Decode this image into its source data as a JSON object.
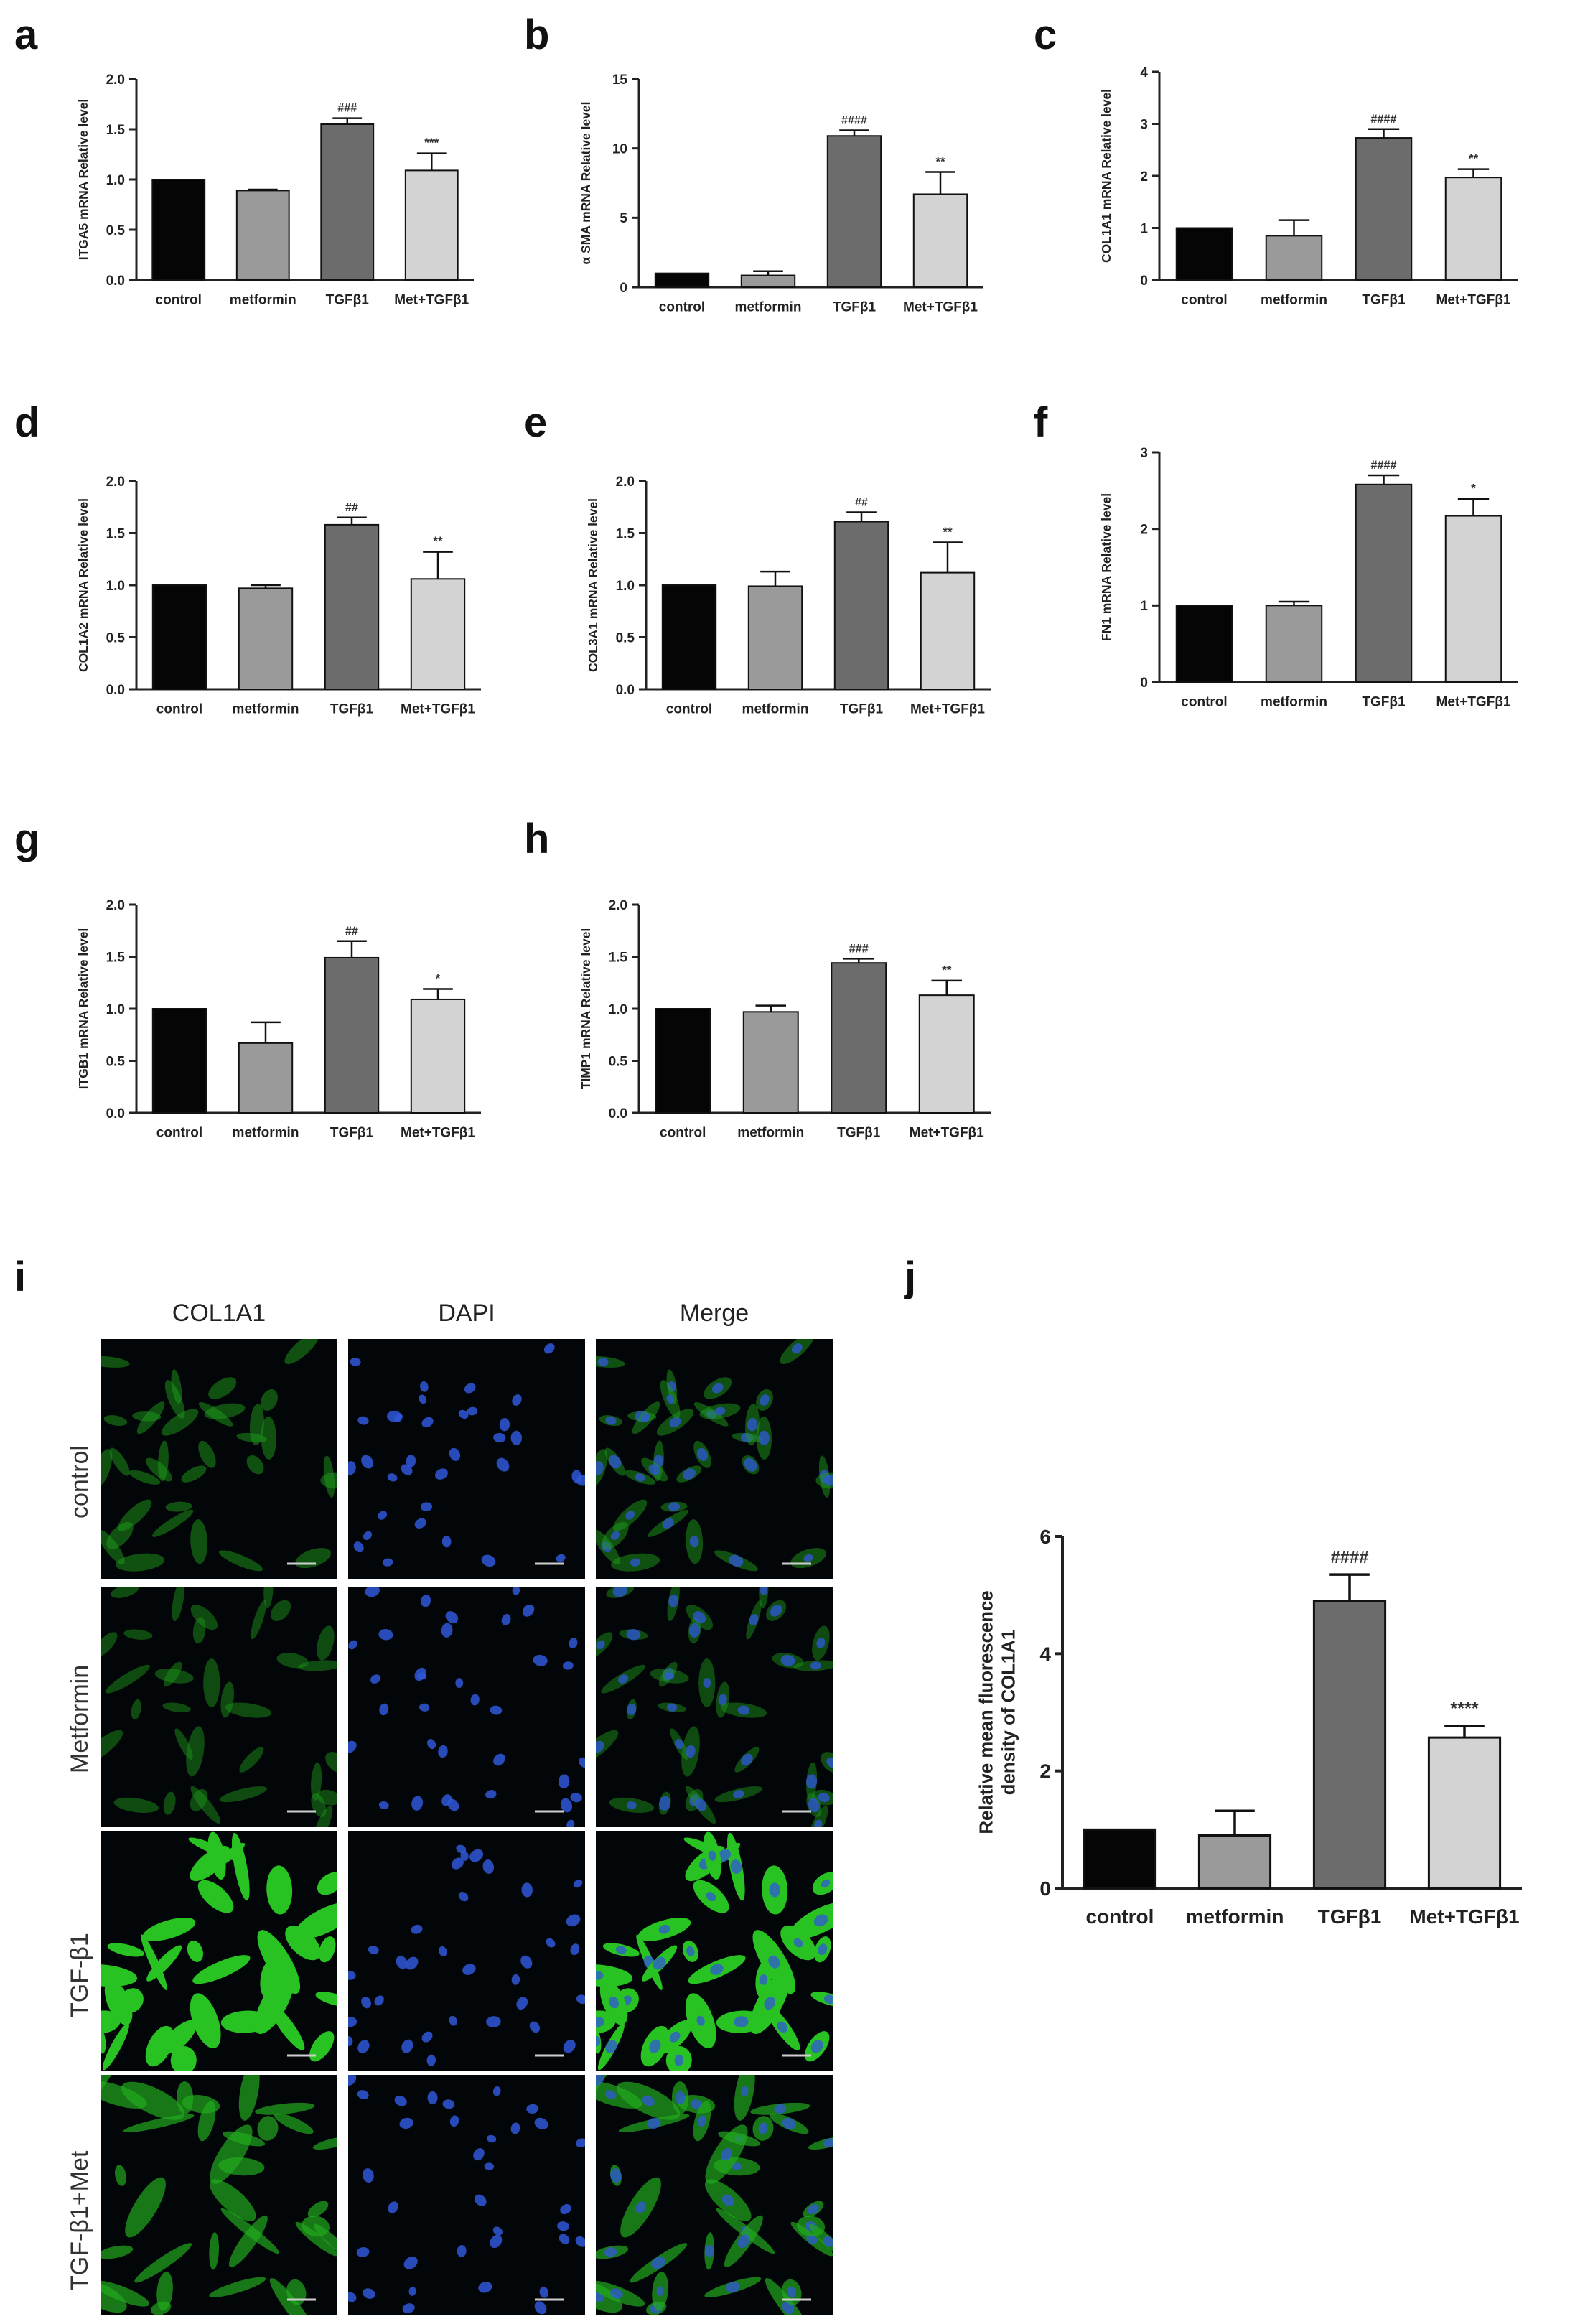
{
  "colors": {
    "control": "#050505",
    "metformin": "#9a9a9a",
    "tgf": "#6c6c6c",
    "met_tgf": "#d3d3d3",
    "axis": "#222222"
  },
  "chart_data": [
    {
      "id": "a",
      "type": "bar",
      "categories": [
        "control",
        "metformin",
        "TGFβ1",
        "Met+TGFβ1"
      ],
      "values": [
        1.0,
        0.89,
        1.55,
        1.09
      ],
      "errors": [
        0,
        0.01,
        0.06,
        0.17
      ],
      "significance": [
        "",
        "",
        "###",
        "***"
      ],
      "ylabel": "ITGA5 mRNA Relative level",
      "ylim": [
        0,
        2.0
      ],
      "yticks": [
        "0.0",
        "0.5",
        "1.0",
        "1.5",
        "2.0"
      ]
    },
    {
      "id": "b",
      "type": "bar",
      "categories": [
        "control",
        "metformin",
        "TGFβ1",
        "Met+TGFβ1"
      ],
      "values": [
        1.0,
        0.85,
        10.9,
        6.7
      ],
      "errors": [
        0,
        0.3,
        0.4,
        1.6
      ],
      "significance": [
        "",
        "",
        "####",
        "**"
      ],
      "ylabel": "α SMA mRNA Relative level",
      "ylim": [
        0,
        15
      ],
      "yticks": [
        "0",
        "5",
        "10",
        "15"
      ]
    },
    {
      "id": "c",
      "type": "bar",
      "categories": [
        "control",
        "metformin",
        "TGFβ1",
        "Met+TGFβ1"
      ],
      "values": [
        1.0,
        0.85,
        2.73,
        1.97
      ],
      "errors": [
        0,
        0.3,
        0.17,
        0.16
      ],
      "significance": [
        "",
        "",
        "####",
        "**"
      ],
      "ylabel": "COL1A1 mRNA Relative level",
      "ylim": [
        0,
        4
      ],
      "yticks": [
        "0",
        "1",
        "2",
        "3",
        "4"
      ]
    },
    {
      "id": "d",
      "type": "bar",
      "categories": [
        "control",
        "metformin",
        "TGFβ1",
        "Met+TGFβ1"
      ],
      "values": [
        1.0,
        0.97,
        1.58,
        1.06
      ],
      "errors": [
        0,
        0.03,
        0.07,
        0.26
      ],
      "significance": [
        "",
        "",
        "##",
        "**"
      ],
      "ylabel": "COL1A2 mRNA Relative level",
      "ylim": [
        0,
        2.0
      ],
      "yticks": [
        "0.0",
        "0.5",
        "1.0",
        "1.5",
        "2.0"
      ]
    },
    {
      "id": "e",
      "type": "bar",
      "categories": [
        "control",
        "metformin",
        "TGFβ1",
        "Met+TGFβ1"
      ],
      "values": [
        1.0,
        0.99,
        1.61,
        1.12
      ],
      "errors": [
        0,
        0.14,
        0.09,
        0.29
      ],
      "significance": [
        "",
        "",
        "##",
        "**"
      ],
      "ylabel": "COL3A1 mRNA Relative level",
      "ylim": [
        0,
        2.0
      ],
      "yticks": [
        "0.0",
        "0.5",
        "1.0",
        "1.5",
        "2.0"
      ]
    },
    {
      "id": "f",
      "type": "bar",
      "categories": [
        "control",
        "metformin",
        "TGFβ1",
        "Met+TGFβ1"
      ],
      "values": [
        1.0,
        1.0,
        2.58,
        2.17
      ],
      "errors": [
        0,
        0.05,
        0.12,
        0.22
      ],
      "significance": [
        "",
        "",
        "####",
        "*"
      ],
      "ylabel": "FN1 mRNA Relative level",
      "ylim": [
        0,
        3
      ],
      "yticks": [
        "0",
        "1",
        "2",
        "3"
      ]
    },
    {
      "id": "g",
      "type": "bar",
      "categories": [
        "control",
        "metformin",
        "TGFβ1",
        "Met+TGFβ1"
      ],
      "values": [
        1.0,
        0.67,
        1.49,
        1.09
      ],
      "errors": [
        0,
        0.2,
        0.16,
        0.1
      ],
      "significance": [
        "",
        "",
        "##",
        "*"
      ],
      "ylabel": "ITGB1 mRNA Relative level",
      "ylim": [
        0,
        2.0
      ],
      "yticks": [
        "0.0",
        "0.5",
        "1.0",
        "1.5",
        "2.0"
      ]
    },
    {
      "id": "h",
      "type": "bar",
      "categories": [
        "control",
        "metformin",
        "TGFβ1",
        "Met+TGFβ1"
      ],
      "values": [
        1.0,
        0.97,
        1.44,
        1.13
      ],
      "errors": [
        0,
        0.06,
        0.04,
        0.14
      ],
      "significance": [
        "",
        "",
        "###",
        "**"
      ],
      "ylabel": "TIMP1 mRNA Relative level",
      "ylim": [
        0,
        2.0
      ],
      "yticks": [
        "0.0",
        "0.5",
        "1.0",
        "1.5",
        "2.0"
      ]
    },
    {
      "id": "j",
      "type": "bar",
      "categories": [
        "control",
        "metformin",
        "TGFβ1",
        "Met+TGFβ1"
      ],
      "values": [
        1.0,
        0.9,
        4.9,
        2.57
      ],
      "errors": [
        0,
        0.42,
        0.45,
        0.2
      ],
      "significance": [
        "",
        "",
        "####",
        "****"
      ],
      "ylabel": "Relative mean fluorescence density of COL1A1",
      "ylim": [
        0,
        6
      ],
      "yticks": [
        "0",
        "2",
        "4",
        "6"
      ]
    }
  ],
  "micrograph": {
    "letter": "i",
    "columns": [
      "COL1A1",
      "DAPI",
      "Merge"
    ],
    "rows": [
      "control",
      "Metformin",
      "TGF-β1",
      "TGF-β1+Met"
    ],
    "col1a1_intensity": [
      0.35,
      0.3,
      1.0,
      0.6
    ]
  },
  "panel_j_letter": "j"
}
